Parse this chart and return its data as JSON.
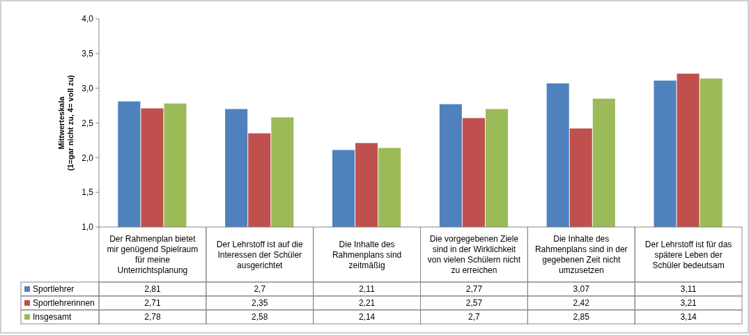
{
  "chart_data": {
    "type": "bar",
    "ylabel": "Mittwerteskala\n(1=gar nicht zu, 4= voll zu)",
    "categories": [
      "Der Rahmenplan bietet mir genügend Spielraum für meine Unterrichtsplanung",
      "Der Lehrstoff ist auf die Interessen der Schüler ausgerichtet",
      "Die Inhalte des Rahmenplans sind zeitmäßig",
      "Die vorgegebenen Ziele sind in der Wirklichkeit von vielen Schülern nicht zu erreichen",
      "Die Inhalte des Rahmenplans sind in der gegebenen Zeit nicht umzusetzen",
      "Der Lehrstoff ist für das spätere Leben der Schüler bedeutsam"
    ],
    "series": [
      {
        "name": "Sportlehrer",
        "color": "#4f81bd",
        "values": [
          2.81,
          2.7,
          2.11,
          2.77,
          3.07,
          3.11
        ],
        "value_labels": [
          "2,81",
          "2,7",
          "2,11",
          "2,77",
          "3,07",
          "3,11"
        ]
      },
      {
        "name": "Sportlehrerinnen",
        "color": "#c0504d",
        "values": [
          2.71,
          2.35,
          2.21,
          2.57,
          2.42,
          3.21
        ],
        "value_labels": [
          "2,71",
          "2,35",
          "2,21",
          "2,57",
          "2,42",
          "3,21"
        ]
      },
      {
        "name": "Insgesamt",
        "color": "#9bbb59",
        "values": [
          2.78,
          2.58,
          2.14,
          2.7,
          2.85,
          3.14
        ],
        "value_labels": [
          "2,78",
          "2,58",
          "2,14",
          "2,7",
          "2,85",
          "3,14"
        ]
      }
    ],
    "ylim": [
      1,
      4
    ],
    "yticks": [
      {
        "value": 1,
        "label": "1,0"
      },
      {
        "value": 1.5,
        "label": "1,5"
      },
      {
        "value": 2,
        "label": "2,0"
      },
      {
        "value": 2.5,
        "label": "2,5"
      },
      {
        "value": 3,
        "label": "3,0"
      },
      {
        "value": 3.5,
        "label": "3,5"
      },
      {
        "value": 4,
        "label": "4,0"
      }
    ],
    "grid": false,
    "legend": "bottom left"
  }
}
